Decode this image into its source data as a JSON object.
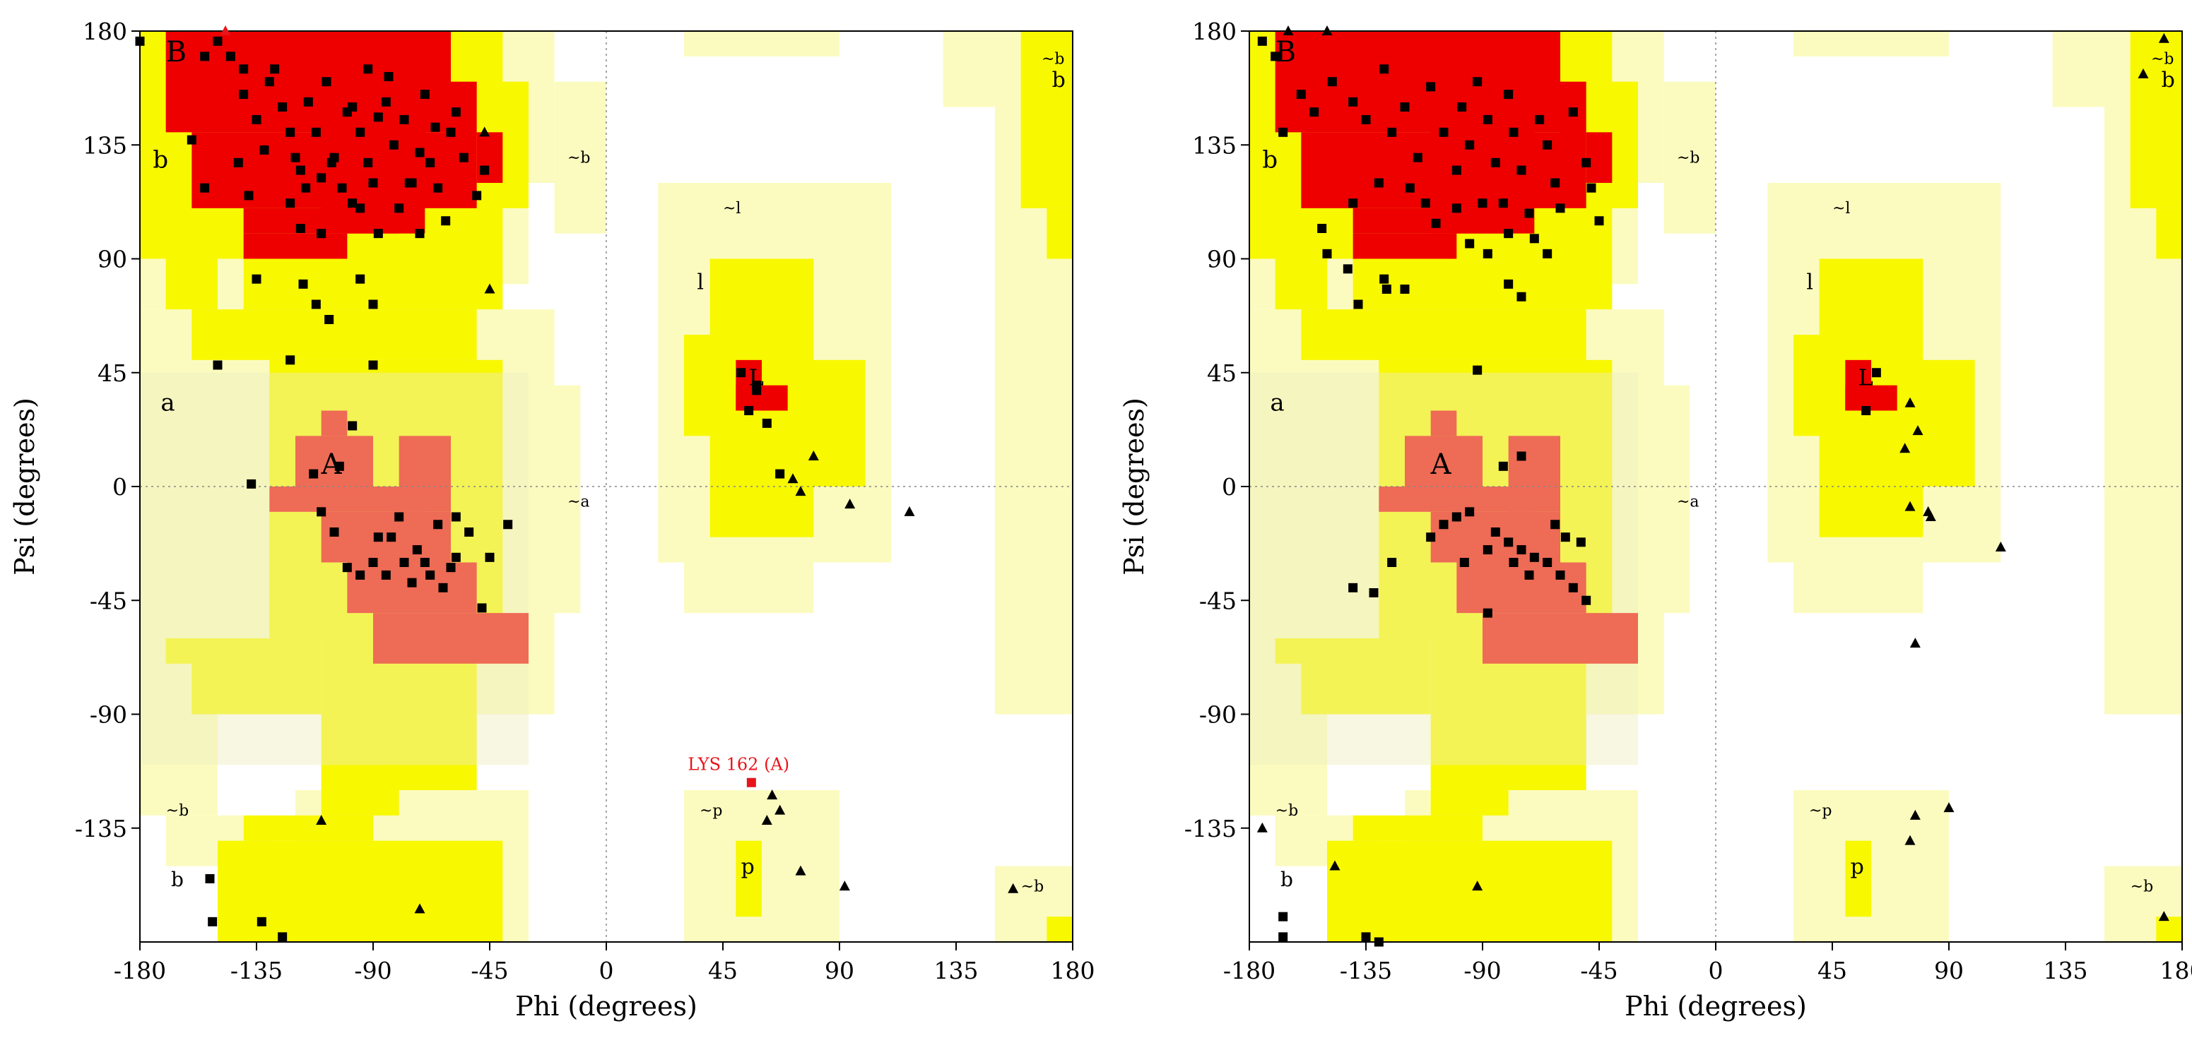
{
  "colors": {
    "core": "#ee0000",
    "allowed": "#f8f800",
    "generous": "#fbfbbf",
    "alpha_allowed": "#eeee00",
    "alpha_generous": "#eeeebf",
    "outlier": "#e8141a"
  },
  "chart_data": [
    {
      "type": "scatter",
      "title": "",
      "xlabel": "Phi (degrees)",
      "ylabel": "Psi (degrees)",
      "xlim": [
        -180,
        180
      ],
      "ylim": [
        -180,
        180
      ],
      "xticks": [
        "-180",
        "-135",
        "-90",
        "-45",
        "0",
        "45",
        "90",
        "135",
        "180"
      ],
      "yticks": [
        "180",
        "135",
        "90",
        "45",
        "0",
        "-45",
        "-90",
        "-135"
      ],
      "region_labels": [
        "B",
        "b",
        "~b",
        "~b",
        "b",
        "a",
        "A",
        "~a",
        "~l",
        "l",
        "L",
        "~b",
        "b",
        "~p",
        "p",
        "~b"
      ],
      "annotation": {
        "text": "LYS 162 (A)",
        "x": 56,
        "y": -117
      },
      "series": [
        {
          "marker": "square",
          "points": [
            [
              -180,
              176
            ],
            [
              -160,
              137
            ],
            [
              -155,
              118
            ],
            [
              -150,
              176
            ],
            [
              -145,
              170
            ],
            [
              -140,
              155
            ],
            [
              -135,
              145
            ],
            [
              -130,
              160
            ],
            [
              -128,
              165
            ],
            [
              -125,
              150
            ],
            [
              -122,
              140
            ],
            [
              -120,
              130
            ],
            [
              -118,
              125
            ],
            [
              -115,
              152
            ],
            [
              -112,
              140
            ],
            [
              -110,
              122
            ],
            [
              -108,
              160
            ],
            [
              -105,
              130
            ],
            [
              -100,
              148
            ],
            [
              -98,
              112
            ],
            [
              -95,
              140
            ],
            [
              -92,
              165
            ],
            [
              -90,
              120
            ],
            [
              -88,
              100
            ],
            [
              -85,
              152
            ],
            [
              -82,
              135
            ],
            [
              -80,
              110
            ],
            [
              -78,
              145
            ],
            [
              -75,
              120
            ],
            [
              -72,
              100
            ],
            [
              -70,
              155
            ],
            [
              -68,
              128
            ],
            [
              -65,
              118
            ],
            [
              -62,
              105
            ],
            [
              -60,
              140
            ],
            [
              -55,
              130
            ],
            [
              -50,
              115
            ],
            [
              -47,
              125
            ],
            [
              -142,
              128
            ],
            [
              -132,
              133
            ],
            [
              -122,
              112
            ],
            [
              -102,
              118
            ],
            [
              -95,
              110
            ],
            [
              -88,
              146
            ],
            [
              -76,
              120
            ],
            [
              -84,
              162
            ],
            [
              -138,
              115
            ],
            [
              -118,
              102
            ],
            [
              -98,
              150
            ],
            [
              -116,
              118
            ],
            [
              -106,
              128
            ],
            [
              -92,
              128
            ],
            [
              -72,
              132
            ],
            [
              -66,
              142
            ],
            [
              -58,
              148
            ],
            [
              -140,
              165
            ],
            [
              -155,
              170
            ],
            [
              -110,
              100
            ],
            [
              -95,
              82
            ],
            [
              -90,
              72
            ],
            [
              -135,
              82
            ],
            [
              -117,
              80
            ],
            [
              -112,
              72
            ],
            [
              -107,
              66
            ],
            [
              -122,
              50
            ],
            [
              -150,
              48
            ],
            [
              -90,
              48
            ],
            [
              -98,
              24
            ],
            [
              -103,
              8
            ],
            [
              -113,
              5
            ],
            [
              -137,
              1
            ],
            [
              -88,
              -20
            ],
            [
              -83,
              -20
            ],
            [
              -78,
              -30
            ],
            [
              -73,
              -25
            ],
            [
              -68,
              -35
            ],
            [
              -63,
              -40
            ],
            [
              -58,
              -28
            ],
            [
              -53,
              -18
            ],
            [
              -48,
              -48
            ],
            [
              -80,
              -12
            ],
            [
              -65,
              -15
            ],
            [
              -70,
              -30
            ],
            [
              -60,
              -32
            ],
            [
              -75,
              -38
            ],
            [
              -85,
              -35
            ],
            [
              -90,
              -30
            ],
            [
              -95,
              -35
            ],
            [
              -100,
              -32
            ],
            [
              -105,
              -18
            ],
            [
              -110,
              -10
            ],
            [
              -58,
              -12
            ],
            [
              -38,
              -15
            ],
            [
              -45,
              -28
            ],
            [
              -153,
              -155
            ],
            [
              -152,
              -172
            ],
            [
              -133,
              -172
            ],
            [
              -125,
              -178
            ],
            [
              52,
              45
            ],
            [
              55,
              30
            ],
            [
              58,
              38
            ],
            [
              62,
              25
            ],
            [
              67,
              5
            ],
            [
              58,
              40
            ]
          ]
        },
        {
          "marker": "triangle",
          "points": [
            [
              -147,
              180
            ],
            [
              -47,
              140
            ],
            [
              -45,
              78
            ],
            [
              80,
              12
            ],
            [
              72,
              3
            ],
            [
              75,
              -2
            ],
            [
              94,
              -7
            ],
            [
              117,
              -10
            ],
            [
              64,
              -122
            ],
            [
              67,
              -128
            ],
            [
              62,
              -132
            ],
            [
              -110,
              -132
            ],
            [
              75,
              -152
            ],
            [
              92,
              -158
            ],
            [
              -72,
              -167
            ],
            [
              157,
              -159
            ]
          ],
          "outlier_indices": [
            0
          ]
        }
      ]
    },
    {
      "type": "scatter",
      "title": "",
      "xlabel": "Phi (degrees)",
      "ylabel": "Psi (degrees)",
      "xlim": [
        -180,
        180
      ],
      "ylim": [
        -180,
        180
      ],
      "xticks": [
        "-180",
        "-135",
        "-90",
        "-45",
        "0",
        "45",
        "90",
        "135",
        "180"
      ],
      "yticks": [
        "180",
        "135",
        "90",
        "45",
        "0",
        "-45",
        "-90",
        "-135"
      ],
      "region_labels": [
        "B",
        "b",
        "~b",
        "~b",
        "b",
        "a",
        "A",
        "~a",
        "~l",
        "l",
        "L",
        "~b",
        "b",
        "~p",
        "p",
        "~b"
      ],
      "series": [
        {
          "marker": "square",
          "points": [
            [
              -175,
              176
            ],
            [
              -170,
              170
            ],
            [
              -160,
              155
            ],
            [
              -155,
              148
            ],
            [
              -148,
              160
            ],
            [
              -140,
              152
            ],
            [
              -135,
              145
            ],
            [
              -128,
              165
            ],
            [
              -125,
              140
            ],
            [
              -120,
              150
            ],
            [
              -115,
              130
            ],
            [
              -110,
              158
            ],
            [
              -105,
              140
            ],
            [
              -100,
              125
            ],
            [
              -98,
              150
            ],
            [
              -95,
              135
            ],
            [
              -92,
              160
            ],
            [
              -88,
              145
            ],
            [
              -85,
              128
            ],
            [
              -82,
              112
            ],
            [
              -80,
              155
            ],
            [
              -78,
              140
            ],
            [
              -75,
              125
            ],
            [
              -72,
              108
            ],
            [
              -68,
              145
            ],
            [
              -65,
              135
            ],
            [
              -62,
              120
            ],
            [
              -60,
              110
            ],
            [
              -55,
              148
            ],
            [
              -50,
              128
            ],
            [
              -48,
              118
            ],
            [
              -45,
              105
            ],
            [
              -130,
              120
            ],
            [
              -118,
              118
            ],
            [
              -108,
              104
            ],
            [
              -95,
              96
            ],
            [
              -88,
              92
            ],
            [
              -80,
              100
            ],
            [
              -112,
              112
            ],
            [
              -100,
              110
            ],
            [
              -90,
              112
            ],
            [
              -70,
              98
            ],
            [
              -65,
              92
            ],
            [
              -140,
              112
            ],
            [
              -152,
              102
            ],
            [
              -150,
              92
            ],
            [
              -142,
              86
            ],
            [
              -128,
              82
            ],
            [
              -127,
              78
            ],
            [
              -120,
              78
            ],
            [
              -138,
              72
            ],
            [
              -167,
              140
            ],
            [
              -80,
              80
            ],
            [
              -75,
              75
            ],
            [
              -92,
              46
            ],
            [
              -75,
              12
            ],
            [
              -82,
              8
            ],
            [
              -95,
              -10
            ],
            [
              -100,
              -12
            ],
            [
              -105,
              -15
            ],
            [
              -110,
              -20
            ],
            [
              -85,
              -18
            ],
            [
              -80,
              -22
            ],
            [
              -75,
              -25
            ],
            [
              -70,
              -28
            ],
            [
              -65,
              -30
            ],
            [
              -60,
              -35
            ],
            [
              -58,
              -20
            ],
            [
              -55,
              -40
            ],
            [
              -50,
              -45
            ],
            [
              -72,
              -35
            ],
            [
              -78,
              -30
            ],
            [
              -88,
              -25
            ],
            [
              -97,
              -30
            ],
            [
              -62,
              -15
            ],
            [
              -52,
              -22
            ],
            [
              -88,
              -50
            ],
            [
              -125,
              -30
            ],
            [
              -132,
              -42
            ],
            [
              -140,
              -40
            ],
            [
              -167,
              -170
            ],
            [
              -167,
              -178
            ],
            [
              -135,
              -178
            ],
            [
              -130,
              -180
            ],
            [
              62,
              45
            ],
            [
              58,
              30
            ]
          ]
        },
        {
          "marker": "triangle",
          "points": [
            [
              -165,
              180
            ],
            [
              -150,
              180
            ],
            [
              75,
              33
            ],
            [
              73,
              15
            ],
            [
              78,
              22
            ],
            [
              75,
              -8
            ],
            [
              82,
              -10
            ],
            [
              83,
              -12
            ],
            [
              110,
              -24
            ],
            [
              173,
              177
            ],
            [
              165,
              163
            ],
            [
              77,
              -62
            ],
            [
              -175,
              -135
            ],
            [
              -147,
              -150
            ],
            [
              -92,
              -158
            ],
            [
              75,
              -140
            ],
            [
              77,
              -130
            ],
            [
              90,
              -127
            ],
            [
              173,
              -170
            ]
          ]
        }
      ]
    }
  ]
}
